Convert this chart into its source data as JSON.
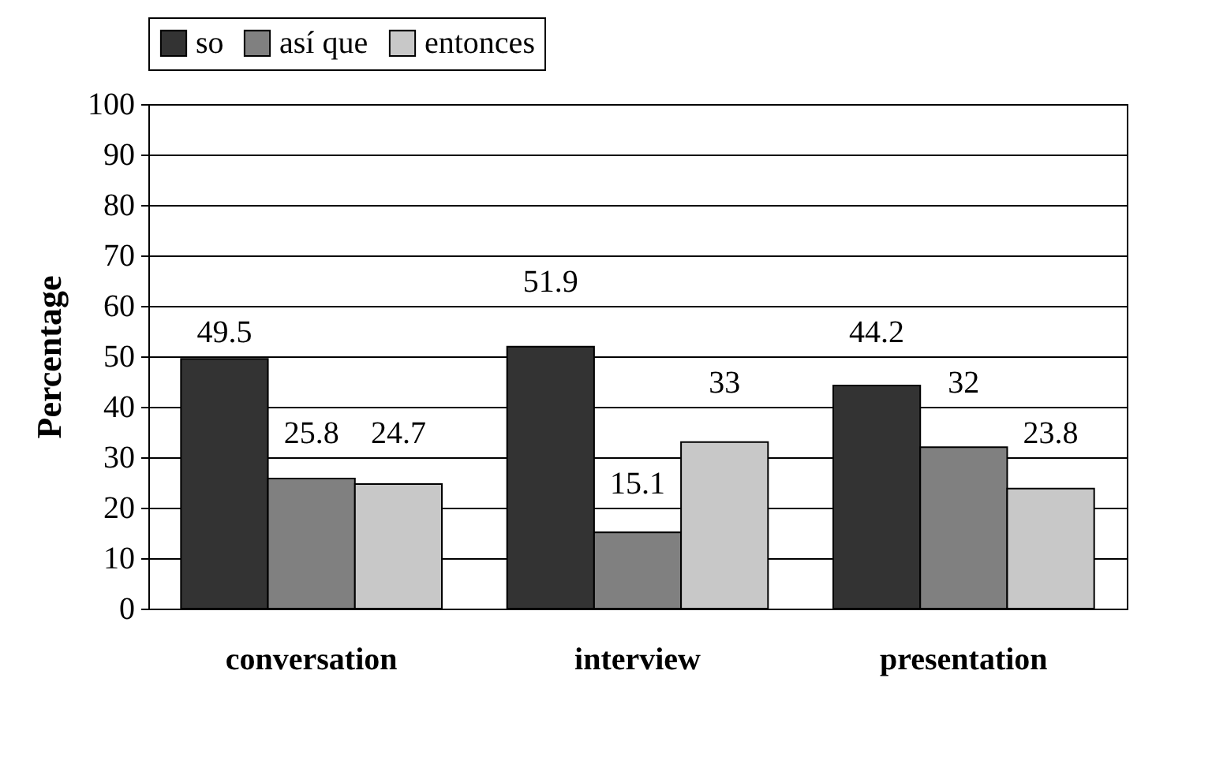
{
  "chart_data": {
    "type": "bar",
    "ylabel": "Percentage",
    "categories": [
      "conversation",
      "interview",
      "presentation"
    ],
    "series": [
      {
        "name": "so",
        "color": "#333333",
        "values": [
          49.5,
          51.9,
          44.2
        ]
      },
      {
        "name": "así que",
        "color": "#808080",
        "values": [
          25.8,
          15.1,
          32
        ]
      },
      {
        "name": "entonces",
        "color": "#c8c8c8",
        "values": [
          24.7,
          33,
          23.8
        ]
      }
    ],
    "ylim": [
      0,
      100
    ],
    "yticks": [
      0,
      10,
      20,
      30,
      40,
      50,
      60,
      70,
      80,
      90,
      100
    ],
    "grid": "y",
    "legend": "top",
    "data_labels": true
  }
}
